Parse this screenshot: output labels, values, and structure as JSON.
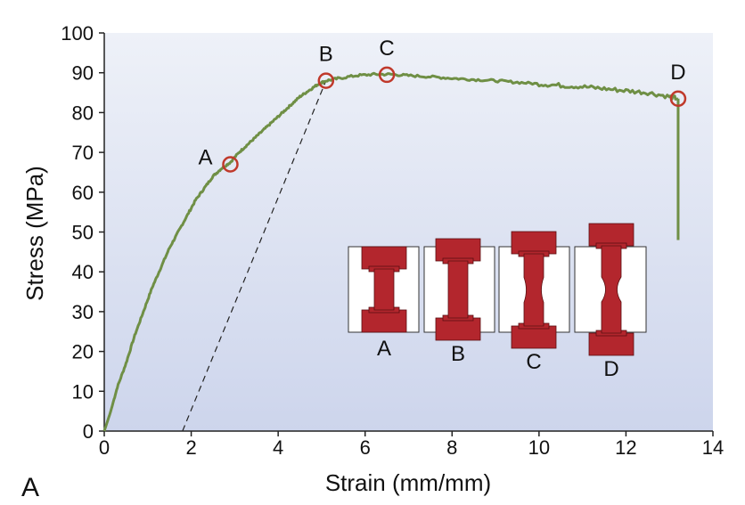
{
  "panel_label": "A",
  "chart_data": {
    "type": "line",
    "title": "",
    "xlabel": "Strain (mm/mm)",
    "ylabel": "Stress (MPa)",
    "xlim": [
      0,
      14
    ],
    "ylim": [
      0,
      100
    ],
    "xticks": [
      "0",
      "2",
      "4",
      "6",
      "8",
      "10",
      "12",
      "14"
    ],
    "yticks": [
      "0",
      "10",
      "20",
      "30",
      "40",
      "50",
      "60",
      "70",
      "80",
      "90",
      "100"
    ],
    "grid": false,
    "colors": {
      "curve": "#6f8f45",
      "marker": "#c0392b",
      "specimen": "#b3262d",
      "plot_bg_top": "#eef1f8",
      "plot_bg_bottom": "#cdd5ec"
    },
    "series": [
      {
        "x": [
          0,
          0.15,
          0.3,
          0.5,
          0.7,
          0.9,
          1.1,
          1.3,
          1.5,
          1.7,
          1.9,
          2.1,
          2.3,
          2.5,
          2.7,
          2.9,
          3.1,
          3.3,
          3.5,
          3.7,
          3.9,
          4.1,
          4.3,
          4.5,
          4.7,
          4.9,
          5.1,
          5.4,
          5.8,
          6.2,
          6.6,
          7.0,
          7.5,
          8.0,
          8.5,
          9.0,
          9.5,
          10.0,
          10.5,
          11.0,
          11.5,
          12.0,
          12.5,
          13.0,
          13.2
        ],
        "y": [
          0,
          5,
          11,
          17,
          24,
          30,
          36,
          41,
          46,
          50,
          54,
          58,
          61,
          64,
          66,
          67.5,
          70,
          72,
          74,
          76,
          78,
          80,
          82,
          84,
          85.5,
          87,
          88,
          88.6,
          89.3,
          89.6,
          89.6,
          89.3,
          89.0,
          88.6,
          88.3,
          88.0,
          87.6,
          87.2,
          86.8,
          86.5,
          86.0,
          85.5,
          85.0,
          84.0,
          83.5
        ]
      }
    ],
    "drop_line": {
      "x": [
        13.2,
        13.2
      ],
      "y": [
        83.5,
        48
      ]
    },
    "offset_line": {
      "x": [
        1.8,
        5.1
      ],
      "y": [
        0,
        88
      ]
    },
    "points": [
      {
        "label": "A",
        "x": 2.9,
        "y": 67
      },
      {
        "label": "B",
        "x": 5.1,
        "y": 88
      },
      {
        "label": "C",
        "x": 6.5,
        "y": 89.5
      },
      {
        "label": "D",
        "x": 13.2,
        "y": 83.5
      }
    ],
    "specimens": [
      "A",
      "B",
      "C",
      "D"
    ]
  }
}
